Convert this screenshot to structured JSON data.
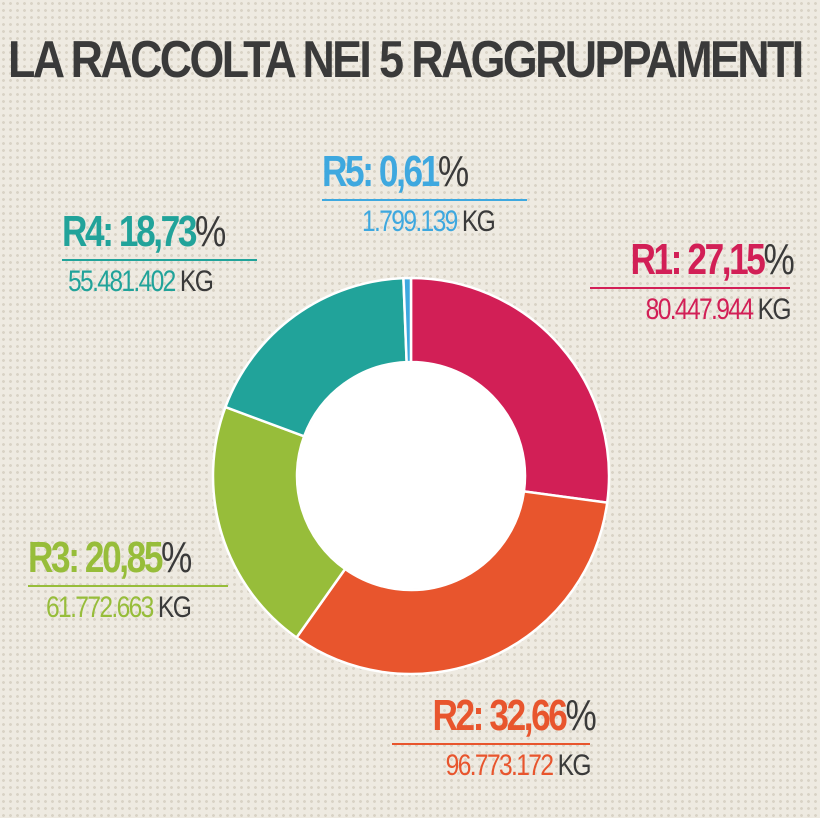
{
  "title": "LA RACCOLTA NEI 5 RAGGRUPPAMENTI",
  "chart_data": {
    "type": "pie",
    "donut": true,
    "title": "LA RACCOLTA NEI 5 RAGGRUPPAMENTI",
    "categories": [
      "R1",
      "R2",
      "R3",
      "R4",
      "R5"
    ],
    "values": [
      27.15,
      32.66,
      20.85,
      18.73,
      0.61
    ],
    "unit": "%",
    "kg": [
      "80.447.944",
      "96.773.172",
      "61.772.663",
      "55.481.402",
      "1.799.139"
    ],
    "colors": [
      "#d21f56",
      "#e8552d",
      "#97bd3a",
      "#21a39a",
      "#3ea8df"
    ]
  },
  "labels": [
    {
      "id": "r1",
      "name": "R1:",
      "value": "27,15",
      "pct": "%",
      "kg": "80.447.944",
      "unit": "KG"
    },
    {
      "id": "r2",
      "name": "R2:",
      "value": "32,66",
      "pct": "%",
      "kg": "96.773.172",
      "unit": "KG"
    },
    {
      "id": "r3",
      "name": "R3:",
      "value": "20,85",
      "pct": "%",
      "kg": "61.772.663",
      "unit": "KG"
    },
    {
      "id": "r4",
      "name": "R4:",
      "value": "18,73",
      "pct": "%",
      "kg": "55.481.402",
      "unit": "KG"
    },
    {
      "id": "r5",
      "name": "R5:",
      "value": "0,61",
      "pct": "%",
      "kg": "1.799.139",
      "unit": "KG"
    }
  ]
}
